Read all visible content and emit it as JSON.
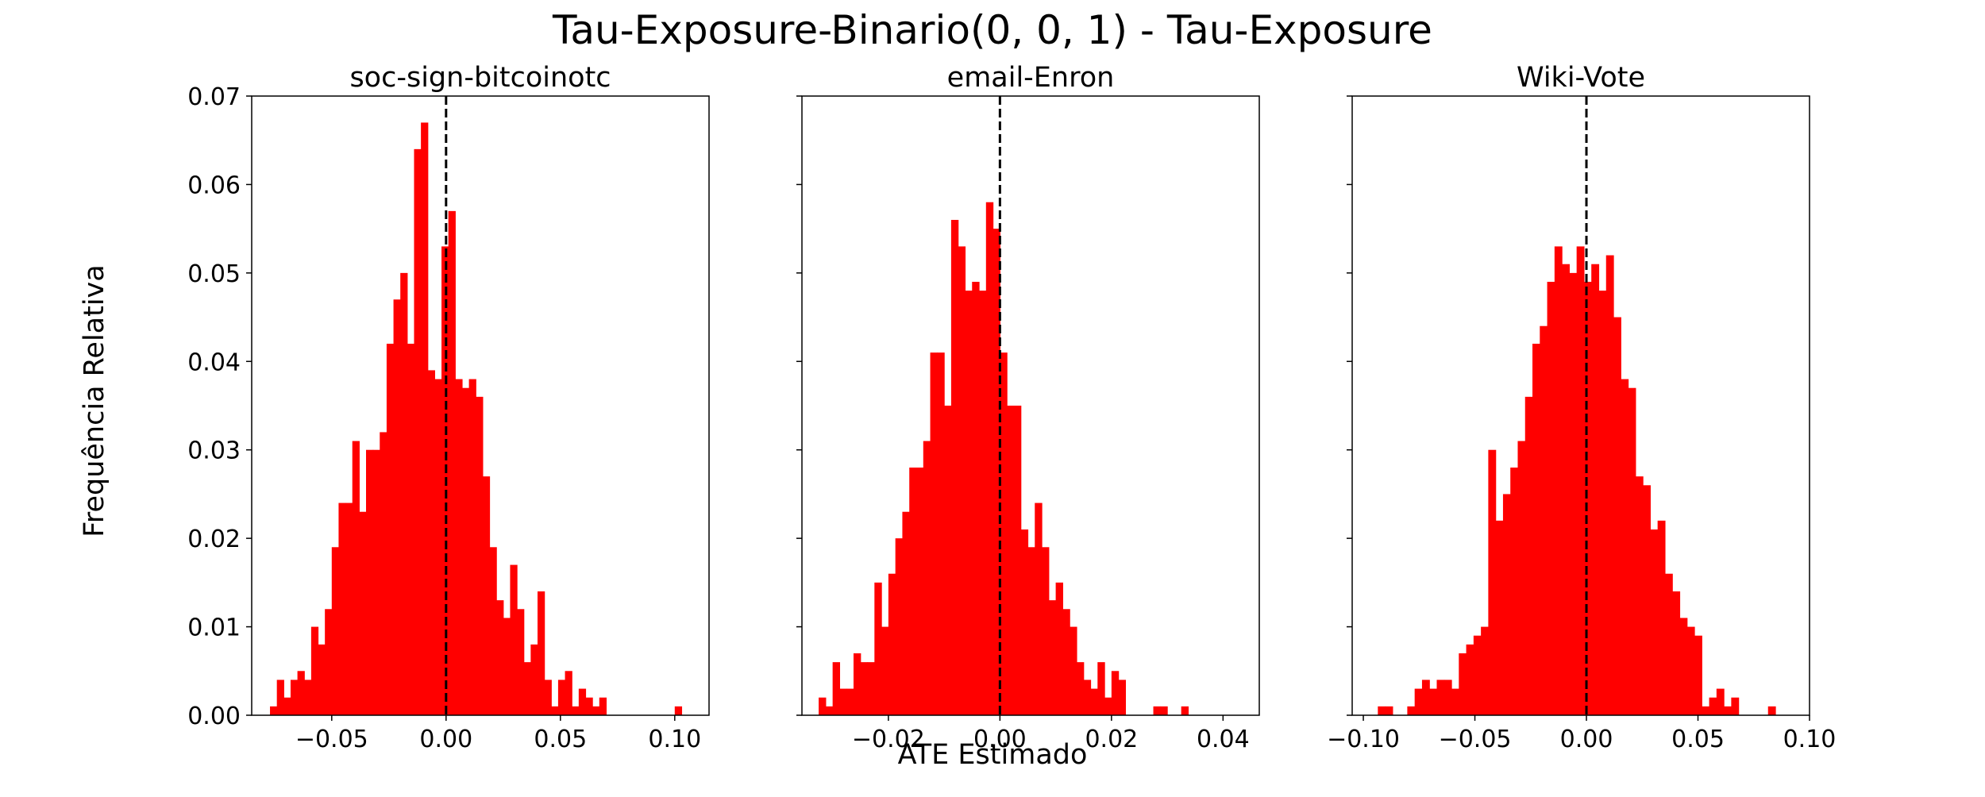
{
  "figure": {
    "suptitle": "Tau-Exposure-Binario(0, 0, 1) - Tau-Exposure",
    "ylabel": "Frequência Relativa",
    "xlabel": "ATE Estimado"
  },
  "chart_data": [
    {
      "type": "bar",
      "title": "soc-sign-bitcoinotc",
      "xlim": [
        -0.085,
        0.115
      ],
      "ylim": [
        0,
        0.07
      ],
      "xticks": [
        -0.05,
        0.0,
        0.05,
        0.1
      ],
      "xtick_labels": [
        "−0.05",
        "0.00",
        "0.05",
        "0.10"
      ],
      "yticks": [
        0,
        0.01,
        0.02,
        0.03,
        0.04,
        0.05,
        0.06,
        0.07
      ],
      "ytick_labels": [
        "0.00",
        "0.01",
        "0.02",
        "0.03",
        "0.04",
        "0.05",
        "0.06",
        "0.07"
      ],
      "bin_start": -0.077,
      "bin_width": 0.003,
      "values": [
        0.001,
        0.004,
        0.002,
        0.004,
        0.005,
        0.004,
        0.01,
        0.008,
        0.012,
        0.019,
        0.024,
        0.024,
        0.031,
        0.023,
        0.03,
        0.03,
        0.032,
        0.042,
        0.047,
        0.05,
        0.042,
        0.064,
        0.067,
        0.039,
        0.038,
        0.053,
        0.057,
        0.038,
        0.037,
        0.038,
        0.036,
        0.027,
        0.019,
        0.013,
        0.011,
        0.017,
        0.012,
        0.006,
        0.008,
        0.014,
        0.004,
        0.001,
        0.004,
        0.005,
        0.001,
        0.003,
        0.002,
        0.001,
        0.002,
        0,
        0,
        0,
        0,
        0,
        0,
        0,
        0,
        0,
        0,
        0.001
      ],
      "vline": 0,
      "color": "#ff0000"
    },
    {
      "type": "bar",
      "title": "email-Enron",
      "xlim": [
        -0.0355,
        0.0465
      ],
      "ylim": [
        0,
        0.07
      ],
      "xticks": [
        -0.02,
        0.0,
        0.02,
        0.04
      ],
      "xtick_labels": [
        "−0.02",
        "0.00",
        "0.02",
        "0.04"
      ],
      "yticks": [
        0,
        0.01,
        0.02,
        0.03,
        0.04,
        0.05,
        0.06,
        0.07
      ],
      "bin_start": -0.0325,
      "bin_width": 0.00125,
      "values": [
        0.002,
        0.001,
        0.006,
        0.003,
        0.003,
        0.007,
        0.006,
        0.006,
        0.015,
        0.01,
        0.016,
        0.02,
        0.023,
        0.028,
        0.028,
        0.031,
        0.041,
        0.041,
        0.035,
        0.056,
        0.053,
        0.048,
        0.049,
        0.048,
        0.058,
        0.055,
        0.041,
        0.035,
        0.035,
        0.021,
        0.019,
        0.024,
        0.019,
        0.013,
        0.015,
        0.012,
        0.01,
        0.006,
        0.004,
        0.003,
        0.006,
        0.002,
        0.005,
        0.004,
        0,
        0,
        0,
        0,
        0.001,
        0.001,
        0,
        0,
        0.001
      ],
      "vline": 0,
      "color": "#ff0000"
    },
    {
      "type": "bar",
      "title": "Wiki-Vote",
      "xlim": [
        -0.105,
        0.1
      ],
      "ylim": [
        0,
        0.07
      ],
      "xticks": [
        -0.1,
        -0.05,
        0.0,
        0.05,
        0.1
      ],
      "xtick_labels": [
        "−0.10",
        "−0.05",
        "0.00",
        "0.05",
        "0.10"
      ],
      "yticks": [
        0,
        0.01,
        0.02,
        0.03,
        0.04,
        0.05,
        0.06,
        0.07
      ],
      "bin_start": -0.0935,
      "bin_width": 0.0033,
      "values": [
        0.001,
        0.001,
        0,
        0,
        0.001,
        0.003,
        0.004,
        0.003,
        0.004,
        0.004,
        0.003,
        0.007,
        0.008,
        0.009,
        0.01,
        0.03,
        0.022,
        0.025,
        0.028,
        0.031,
        0.036,
        0.042,
        0.044,
        0.049,
        0.053,
        0.051,
        0.05,
        0.053,
        0.049,
        0.051,
        0.048,
        0.052,
        0.045,
        0.038,
        0.037,
        0.027,
        0.026,
        0.021,
        0.022,
        0.016,
        0.014,
        0.011,
        0.01,
        0.009,
        0.001,
        0.002,
        0.003,
        0.001,
        0.002,
        0,
        0,
        0,
        0,
        0.001
      ],
      "vline": 0,
      "color": "#ff0000"
    }
  ]
}
